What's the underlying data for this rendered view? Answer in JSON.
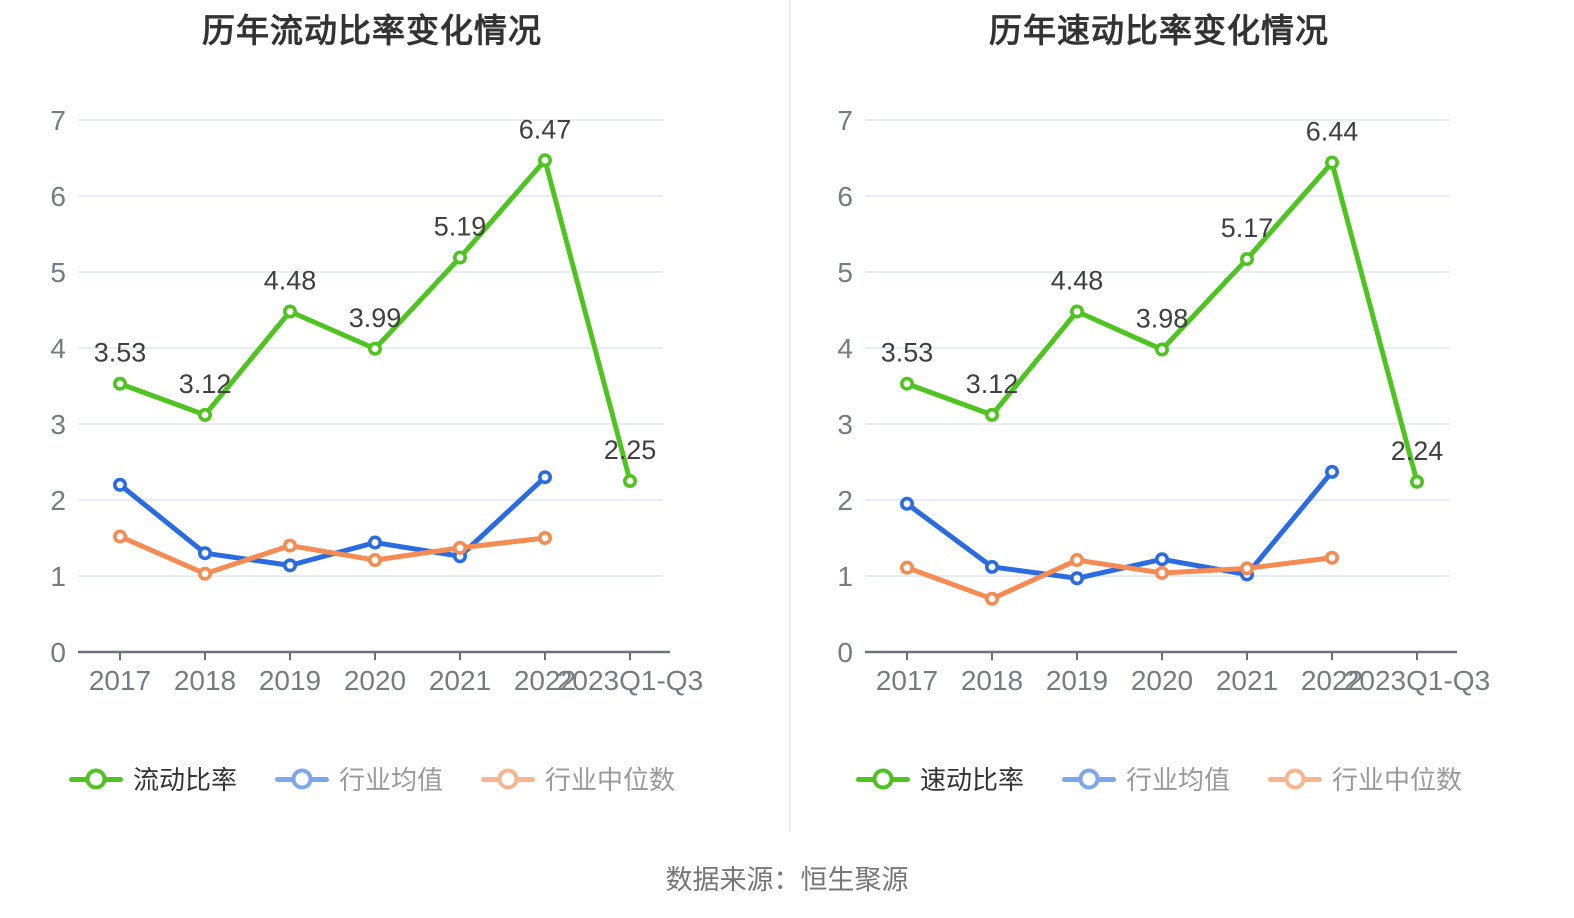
{
  "page": {
    "source_note": "数据来源：恒生聚源"
  },
  "chart_data": [
    {
      "type": "line",
      "title": "历年流动比率变化情况",
      "categories": [
        "2017",
        "2018",
        "2019",
        "2020",
        "2021",
        "2022",
        "2023Q1-Q3"
      ],
      "ylim": [
        0,
        7
      ],
      "yticks": [
        0,
        1,
        2,
        3,
        4,
        5,
        6,
        7
      ],
      "grid": true,
      "legend_position": "bottom",
      "series": [
        {
          "name": "流动比率",
          "color": "#4fc320",
          "legend_color": "#4fc320",
          "text_color": "#333333",
          "show_labels": true,
          "values": [
            3.53,
            3.12,
            4.48,
            3.99,
            5.19,
            6.47,
            2.25
          ],
          "labels": [
            "3.53",
            "3.12",
            "4.48",
            "3.99",
            "5.19",
            "6.47",
            "2.25"
          ]
        },
        {
          "name": "行业均值",
          "color": "#2a6be2",
          "legend_color": "#7ea6ed",
          "text_color": "#999999",
          "show_labels": false,
          "values": [
            2.2,
            1.3,
            1.14,
            1.44,
            1.26,
            2.3,
            null
          ]
        },
        {
          "name": "行业中位数",
          "color": "#f58b52",
          "legend_color": "#f8b48f",
          "text_color": "#999999",
          "show_labels": false,
          "values": [
            1.52,
            1.03,
            1.4,
            1.21,
            1.37,
            1.5,
            null
          ]
        }
      ]
    },
    {
      "type": "line",
      "title": "历年速动比率变化情况",
      "categories": [
        "2017",
        "2018",
        "2019",
        "2020",
        "2021",
        "2022",
        "2023Q1-Q3"
      ],
      "ylim": [
        0,
        7
      ],
      "yticks": [
        0,
        1,
        2,
        3,
        4,
        5,
        6,
        7
      ],
      "grid": true,
      "legend_position": "bottom",
      "series": [
        {
          "name": "速动比率",
          "color": "#4fc320",
          "legend_color": "#4fc320",
          "text_color": "#333333",
          "show_labels": true,
          "values": [
            3.53,
            3.12,
            4.48,
            3.98,
            5.17,
            6.44,
            2.24
          ],
          "labels": [
            "3.53",
            "3.12",
            "4.48",
            "3.98",
            "5.17",
            "6.44",
            "2.24"
          ]
        },
        {
          "name": "行业均值",
          "color": "#2a6be2",
          "legend_color": "#7ea6ed",
          "text_color": "#999999",
          "show_labels": false,
          "values": [
            1.95,
            1.12,
            0.97,
            1.22,
            1.02,
            2.37,
            null
          ]
        },
        {
          "name": "行业中位数",
          "color": "#f58b52",
          "legend_color": "#f8b48f",
          "text_color": "#999999",
          "show_labels": false,
          "values": [
            1.11,
            0.7,
            1.21,
            1.04,
            1.1,
            1.24,
            null
          ]
        }
      ]
    }
  ]
}
